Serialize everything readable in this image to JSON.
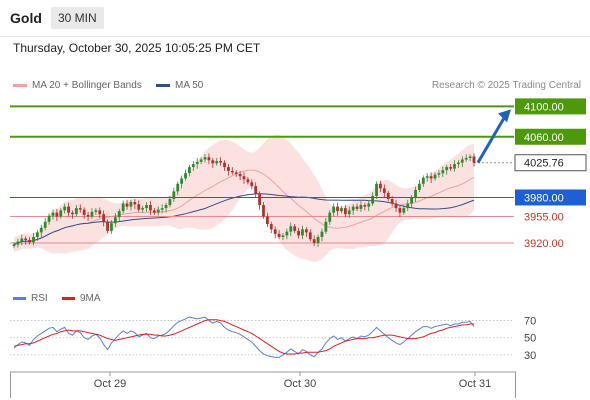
{
  "header": {
    "symbol": "Gold",
    "timeframe": "30 MIN"
  },
  "datetime": "Thursday, October 30, 2025 10:05:25 PM CET",
  "legend": {
    "bb_label": "MA 20 + Bollinger Bands",
    "ma50_label": "MA 50",
    "credit": "Research © 2025 Trading Central"
  },
  "rsi_legend": {
    "rsi_label": "RSI",
    "ma_label": "9MA"
  },
  "colors": {
    "resistance": "#4c9a0c",
    "support": "#e8888f",
    "pivot": "#1f5fd6",
    "price": "#4a4a4a",
    "bb_fill": "#fbdcdc",
    "ma20": "#f2a0a0",
    "ma50": "#2c4f8f",
    "arrow": "#2462b8",
    "candle_up": "#2f8a2f",
    "candle_down": "#b03030",
    "rsi": "#5b7fd8",
    "rsi_ma": "#e02020"
  },
  "chart_data": {
    "type": "candlestick",
    "price_range": [
      3895,
      4115
    ],
    "x_labels": [
      "Oct 29",
      "Oct 30",
      "Oct 31"
    ],
    "levels": [
      {
        "value": 4100.0,
        "label": "4100.00",
        "kind": "resistance"
      },
      {
        "value": 4060.0,
        "label": "4060.00",
        "kind": "resistance"
      },
      {
        "value": 4025.76,
        "label": "4025.76",
        "kind": "price"
      },
      {
        "value": 3980.0,
        "label": "3980.00",
        "kind": "pivot"
      },
      {
        "value": 3955.0,
        "label": "3955.00",
        "kind": "support"
      },
      {
        "value": 3920.0,
        "label": "3920.00",
        "kind": "support"
      }
    ],
    "closes": [
      3918,
      3922,
      3926,
      3924,
      3921,
      3928,
      3934,
      3940,
      3948,
      3956,
      3960,
      3955,
      3963,
      3968,
      3960,
      3958,
      3966,
      3964,
      3957,
      3955,
      3961,
      3963,
      3958,
      3948,
      3936,
      3946,
      3954,
      3962,
      3972,
      3968,
      3974,
      3971,
      3964,
      3966,
      3970,
      3963,
      3960,
      3964,
      3966,
      3970,
      3978,
      3988,
      3998,
      4005,
      4012,
      4020,
      4024,
      4027,
      4030,
      4033,
      4029,
      4025,
      4028,
      4026,
      4020,
      4015,
      4013,
      4011,
      4008,
      4004,
      4000,
      3995,
      3985,
      3970,
      3955,
      3945,
      3938,
      3932,
      3928,
      3930,
      3935,
      3942,
      3936,
      3930,
      3938,
      3934,
      3925,
      3920,
      3928,
      3935,
      3948,
      3960,
      3968,
      3962,
      3966,
      3958,
      3963,
      3968,
      3965,
      3970,
      3968,
      3972,
      3982,
      3998,
      3992,
      3986,
      3978,
      3972,
      3966,
      3960,
      3966,
      3972,
      3980,
      3990,
      3998,
      4006,
      4008,
      4005,
      4010,
      4012,
      4016,
      4020,
      4018,
      4024,
      4026,
      4030,
      4032,
      4034,
      4025.76
    ],
    "rsi": {
      "range": [
        10,
        80
      ],
      "ticks": [
        70,
        50,
        30
      ],
      "overbought": 70,
      "oversold": 30,
      "values": [
        38,
        42,
        45,
        44,
        41,
        48,
        52,
        55,
        58,
        61,
        62,
        57,
        60,
        62,
        55,
        53,
        58,
        56,
        50,
        48,
        52,
        54,
        50,
        42,
        36,
        44,
        49,
        54,
        58,
        55,
        58,
        56,
        51,
        53,
        55,
        50,
        49,
        52,
        53,
        55,
        59,
        64,
        68,
        70,
        72,
        74,
        73,
        72,
        73,
        74,
        70,
        67,
        69,
        67,
        62,
        59,
        57,
        56,
        54,
        51,
        48,
        45,
        40,
        35,
        31,
        29,
        28,
        27,
        27,
        30,
        33,
        37,
        34,
        31,
        36,
        34,
        30,
        28,
        33,
        37,
        44,
        49,
        52,
        48,
        50,
        46,
        49,
        51,
        49,
        52,
        51,
        53,
        57,
        62,
        58,
        54,
        50,
        47,
        44,
        42,
        45,
        49,
        53,
        57,
        60,
        63,
        63,
        61,
        63,
        64,
        65,
        66,
        64,
        66,
        66,
        68,
        68,
        69,
        63
      ],
      "ma_values": [
        40,
        41,
        42,
        43,
        43,
        44,
        46,
        48,
        50,
        52,
        54,
        55,
        57,
        58,
        59,
        58,
        58,
        58,
        57,
        56,
        55,
        54,
        53,
        51,
        49,
        48,
        47,
        48,
        49,
        50,
        51,
        52,
        53,
        54,
        54,
        54,
        53,
        53,
        52,
        52,
        53,
        54,
        56,
        58,
        60,
        62,
        64,
        66,
        68,
        70,
        71,
        71,
        71,
        70,
        69,
        67,
        65,
        63,
        61,
        59,
        57,
        55,
        52,
        49,
        46,
        43,
        40,
        37,
        34,
        32,
        31,
        31,
        31,
        32,
        32,
        33,
        33,
        33,
        33,
        34,
        35,
        37,
        40,
        42,
        44,
        46,
        47,
        48,
        49,
        49,
        49,
        50,
        50,
        51,
        52,
        53,
        53,
        53,
        52,
        51,
        50,
        49,
        49,
        49,
        50,
        51,
        53,
        55,
        56,
        58,
        59,
        61,
        62,
        63,
        64,
        65,
        65,
        66,
        66
      ]
    }
  }
}
